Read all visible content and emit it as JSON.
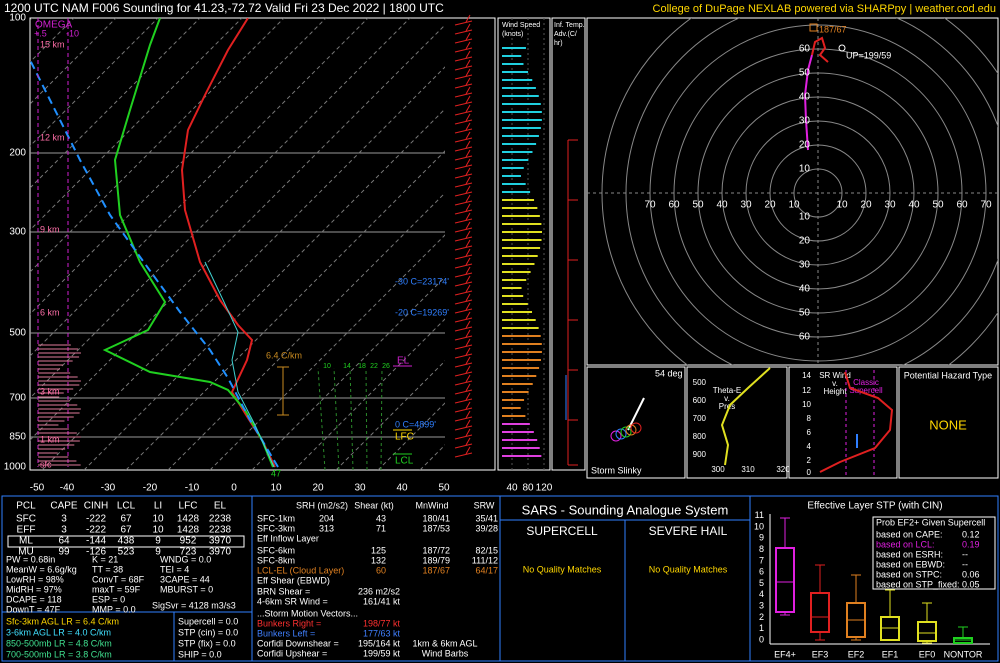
{
  "header": {
    "title": "1200 UTC NAM F006 Sounding for 41.23,-72.72 Valid  Fri 23 Dec 2022 | 1800 UTC",
    "credit": "College of DuPage NEXLAB powered via SHARPpy | weather.cod.edu"
  },
  "skewt": {
    "pressure_labels": [
      "100",
      "200",
      "300",
      "500",
      "700",
      "850",
      "1000"
    ],
    "temperature_labels": [
      "-50",
      "-40",
      "-30",
      "-20",
      "-10",
      "0",
      "10",
      "20",
      "30",
      "40",
      "50"
    ],
    "height_labels": [
      "15 km",
      "12 km",
      "9 km",
      "6 km",
      "3 km",
      "1 km",
      "sfc"
    ],
    "omega_label": "OMEGA",
    "omega_scale": [
      "+.5",
      "-10"
    ],
    "mixing_ratio_labels": [
      "10",
      "14",
      "18",
      "22",
      "26"
    ],
    "lapse_rate": "6.4 C/km",
    "levels": {
      "el": "EL",
      "lfc": "LFC",
      "lcl": "LCL"
    },
    "isotherm_heights": [
      "-30 C=23174'",
      "-20 C=19269'",
      "0 C=4899'"
    ],
    "surface_temp": "47"
  },
  "wind_speed": {
    "title": [
      "Wind Speed",
      "(knots)"
    ],
    "ticks": [
      "40",
      "80",
      "120"
    ]
  },
  "temp_advection": {
    "title": [
      "Inf. Temp.",
      "Adv.(C/",
      "hr)"
    ]
  },
  "hodograph": {
    "x_labels_left": [
      "70",
      "60",
      "50",
      "40",
      "30",
      "20",
      "10"
    ],
    "x_labels_right": [
      "10",
      "20",
      "30",
      "40",
      "50",
      "60",
      "70"
    ],
    "y_labels_up": [
      "60",
      "50",
      "40",
      "30",
      "20",
      "10"
    ],
    "y_labels_down": [
      "10",
      "20",
      "30",
      "40",
      "50",
      "60"
    ],
    "cloud_layer_wind": "187/67",
    "upshear": "UP=199/59"
  },
  "slinky": {
    "angle": "54 deg",
    "title": "Storm Slinky"
  },
  "theta_e": {
    "title": [
      "Theta-E",
      "v.",
      "Pres"
    ],
    "y_labels": [
      "500",
      "600",
      "700",
      "800",
      "900"
    ],
    "x_labels": [
      "300",
      "310",
      "320"
    ]
  },
  "sr_wind": {
    "title": [
      "SR Wind",
      "v.",
      "Height"
    ],
    "storm_type": [
      "Classic",
      "Supercell"
    ],
    "y_labels": [
      "14",
      "12",
      "10",
      "8",
      "6",
      "4",
      "2",
      "0"
    ]
  },
  "hazard": {
    "title": "Potential Hazard Type",
    "value": "NONE"
  },
  "parcel_table": {
    "header": [
      "PCL",
      "CAPE",
      "CINH",
      "LCL",
      "LI",
      "LFC",
      "EL"
    ],
    "rows": [
      [
        "SFC",
        "3",
        "-222",
        "67",
        "10",
        "1428",
        "2238"
      ],
      [
        "EFF",
        "3",
        "-222",
        "67",
        "10",
        "1428",
        "2238"
      ],
      [
        "ML",
        "64",
        "-144",
        "438",
        "9",
        "952",
        "3970"
      ],
      [
        "MU",
        "99",
        "-126",
        "523",
        "9",
        "723",
        "3970"
      ]
    ]
  },
  "indices": {
    "col1": [
      "PW = 0.68in",
      "MeanW = 6.6g/kg",
      "LowRH = 98%",
      "MidRH = 97%",
      "DCAPE = 118",
      "DownT = 47F"
    ],
    "col2": [
      "K = 21",
      "TT = 38",
      "ConvT = 68F",
      "maxT = 59F",
      "ESP = 0",
      "MMP = 0.0"
    ],
    "col3": [
      "WNDG = 0.0",
      "TEI = 4",
      "3CAPE = 44",
      "MBURST = 0"
    ],
    "sigsvr": "SigSvr = 4128 m3/s3"
  },
  "lapse_rates": [
    "Sfc-3km AGL LR = 6.4 C/km",
    "3-6km AGL LR = 4.0 C/km",
    "850-500mb LR = 4.8 C/km",
    "700-500mb LR = 3.8 C/km"
  ],
  "composites": [
    "Supercell = 0.0",
    "STP (cin) = 0.0",
    "STP (fix) = 0.0",
    "SHIP = 0.0"
  ],
  "kinematics": {
    "header": [
      "SRH (m2/s2)",
      "Shear (kt)",
      "MnWind",
      "SRW"
    ],
    "rows": [
      {
        "label": "SFC-1km",
        "srh": "204",
        "shear": "43",
        "mnwind": "180/41",
        "srw": "35/41"
      },
      {
        "label": "SFC-3km",
        "srh": "313",
        "shear": "71",
        "mnwind": "187/53",
        "srw": "39/28"
      },
      {
        "label": "Eff Inflow Layer"
      },
      {
        "label": "SFC-6km",
        "shear": "125",
        "mnwind": "187/72",
        "srw": "82/15"
      },
      {
        "label": "SFC-8km",
        "shear": "132",
        "mnwind": "189/79",
        "srw": "111/12"
      },
      {
        "label": "LCL-EL (Cloud Layer)",
        "shear": "60",
        "mnwind": "187/67",
        "srw": "64/17"
      },
      {
        "label": "Eff Shear (EBWD)"
      }
    ],
    "extras": [
      {
        "label": "BRN Shear =",
        "value": "236 m2/s2"
      },
      {
        "label": "4-6km SR Wind =",
        "value": "161/41 kt"
      }
    ],
    "storm_motion_title": "...Storm Motion Vectors...",
    "storm_motion": [
      {
        "label": "Bunkers Right =",
        "value": "198/77 kt"
      },
      {
        "label": "Bunkers Left =",
        "value": "177/63 kt"
      },
      {
        "label": "Corfidi Downshear =",
        "value": "195/164 kt"
      },
      {
        "label": "Corfidi Upshear =",
        "value": "199/59 kt"
      }
    ],
    "barbs_note": [
      "1km & 6km AGL",
      "Wind Barbs"
    ]
  },
  "sars": {
    "title": "SARS - Sounding Analogue System",
    "supercell": "SUPERCELL",
    "hail": "SEVERE HAIL",
    "supercell_matches": "No Quality Matches",
    "hail_matches": "No Quality Matches"
  },
  "stp": {
    "title": "Effective Layer STP (with CIN)",
    "yticks": [
      "0",
      "1",
      "2",
      "3",
      "4",
      "5",
      "6",
      "7",
      "8",
      "9",
      "10",
      "11"
    ],
    "categories": [
      "EF4+",
      "EF3",
      "EF2",
      "EF1",
      "EF0",
      "NONTOR"
    ],
    "prob_box": {
      "title": "Prob EF2+ Given Supercell",
      "rows": [
        {
          "label": "based on CAPE:",
          "value": "0.12"
        },
        {
          "label": "based on LCL:",
          "value": "0.19"
        },
        {
          "label": "based on ESRH:",
          "value": "--"
        },
        {
          "label": "based on EBWD:",
          "value": "--"
        },
        {
          "label": "based on STPC:",
          "value": "0.06"
        },
        {
          "label": "based on STP_fixed:",
          "value": "0.05"
        }
      ]
    }
  }
}
